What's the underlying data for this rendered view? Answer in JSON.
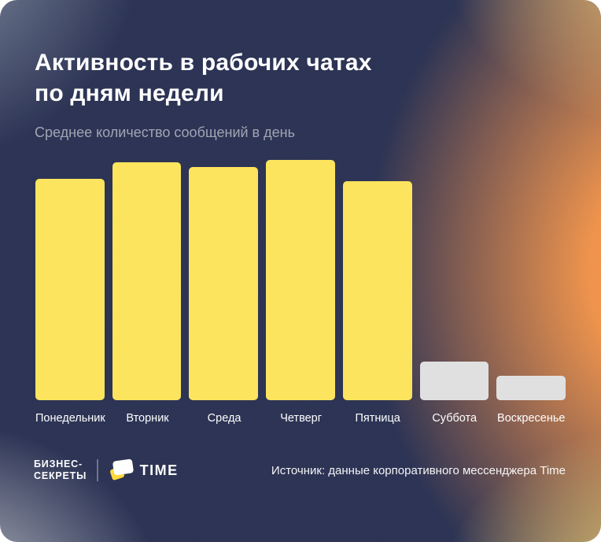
{
  "header": {
    "title": "Активность в рабочих чатах\nпо дням недели",
    "subtitle": "Среднее количество сообщений в день"
  },
  "chart_data": {
    "type": "bar",
    "title": "Активность в рабочих чатах по дням недели",
    "subtitle": "Среднее количество сообщений в день",
    "categories": [
      "Понедельник",
      "Вторник",
      "Среда",
      "Четверг",
      "Пятница",
      "Суббота",
      "Воскресенье"
    ],
    "values": [
      92,
      99,
      97,
      100,
      91,
      16,
      10
    ],
    "value_unit": "relative activity, % of peak day (no numeric axis shown in image)",
    "ylim": [
      0,
      100
    ],
    "grid": false,
    "legend": null,
    "bar_colors": [
      "#FCE45E",
      "#FCE45E",
      "#FCE45E",
      "#FCE45E",
      "#FCE45E",
      "#E0E0E1",
      "#E0E0E1"
    ]
  },
  "footer": {
    "brand_left_line1": "БИЗНЕС-",
    "brand_left_line2": "СЕКРЕТЫ",
    "brand_right_label": "TIME",
    "source": "Источник: данные корпоративного мессенджера Time"
  },
  "colors": {
    "background_navy": "#2B3252",
    "background_orange": "#F3924A",
    "background_slate": "#8C98A7",
    "background_bottom_yellow": "#FCE17A",
    "bar_yellow": "#FCE45E",
    "bar_gray": "#E0E0E1",
    "title_text": "#FFFFFF",
    "subtitle_text": "#A9B0BD"
  }
}
